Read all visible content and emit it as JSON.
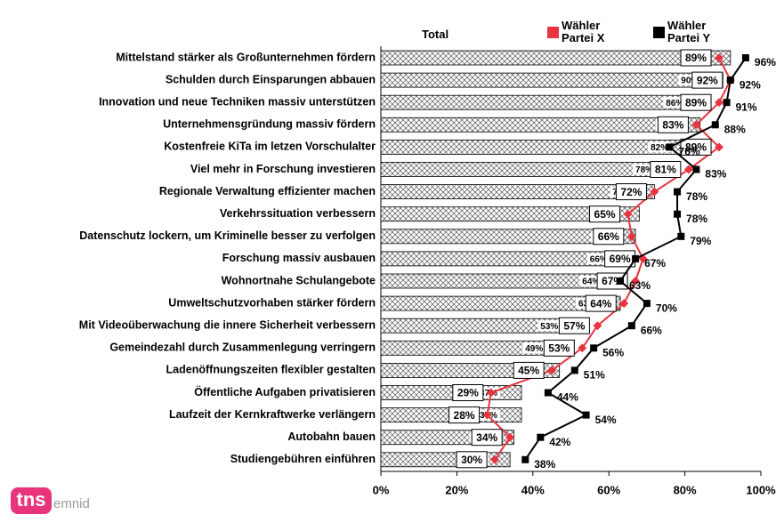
{
  "chart_data": {
    "type": "bar",
    "orientation": "horizontal",
    "categories": [
      "Mittelstand stärker als Großunternehmen fördern",
      "Schulden durch Einsparungen abbauen",
      "Innovation und neue Techniken massiv unterstützen",
      "Unternehmensgründung massiv fördern",
      "Kostenfreie KiTa im letzen Vorschulalter",
      "Viel mehr in Forschung investieren",
      "Regionale Verwaltung effizienter machen",
      "Verkehrssituation verbessern",
      "Datenschutz lockern, um Kriminelle besser zu verfolgen",
      "Forschung massiv ausbauen",
      "Wohnortnahe Schulangebote",
      "Umweltschutzvorhaben stärker fördern",
      "Mit Videoüberwachung die innere Sicherheit verbessern",
      "Gemeindezahl durch Zusammenlegung verringern",
      "Ladenöffnungszeiten flexibler gestalten",
      "Öffentliche Aufgaben privatisieren",
      "Laufzeit der Kernkraftwerke verlängern",
      "Autobahn bauen",
      "Studiengebühren einführen"
    ],
    "series": [
      {
        "name": "Total",
        "type": "bar",
        "color": "#000000",
        "values": [
          92,
          90,
          86,
          84,
          82,
          78,
          72,
          68,
          67,
          66,
          64,
          63,
          53,
          49,
          47,
          37,
          37,
          35,
          34
        ],
        "value_labels": [
          "92%",
          "90%",
          "86%",
          "84%",
          "82%",
          "78%",
          "72%",
          "68%",
          "67%",
          "66%",
          "64%",
          "63%",
          "53%",
          "49%",
          "47%",
          "37%",
          "37%",
          "35%",
          "34%"
        ]
      },
      {
        "name": "Wähler Partei X",
        "type": "line",
        "color": "#e8343f",
        "values": [
          89,
          92,
          89,
          83,
          89,
          81,
          72,
          65,
          66,
          69,
          67,
          64,
          57,
          53,
          45,
          29,
          28,
          34,
          30
        ],
        "value_labels": [
          "89%",
          "92%",
          "89%",
          "83%",
          "89%",
          "81%",
          "72%",
          "65%",
          "66%",
          "69%",
          "67%",
          "64%",
          "57%",
          "53%",
          "45%",
          "29%",
          "28%",
          "34%",
          "30%"
        ]
      },
      {
        "name": "Wähler Partei Y",
        "type": "line",
        "color": "#000000",
        "values": [
          96,
          92,
          91,
          88,
          76,
          83,
          78,
          78,
          79,
          67,
          63,
          70,
          66,
          56,
          51,
          44,
          54,
          42,
          38
        ],
        "value_labels": [
          "96%",
          "92%",
          "91%",
          "88%",
          "76%",
          "83%",
          "78%",
          "78%",
          "79%",
          "67%",
          "63%",
          "70%",
          "66%",
          "56%",
          "51%",
          "44%",
          "54%",
          "42%",
          "38%"
        ]
      }
    ],
    "xlim": [
      0,
      100
    ],
    "xticks": [
      {
        "value": 0,
        "label": "0%"
      },
      {
        "value": 20,
        "label": "20%"
      },
      {
        "value": 40,
        "label": "40%"
      },
      {
        "value": 60,
        "label": "60%"
      },
      {
        "value": 80,
        "label": "80%"
      },
      {
        "value": 100,
        "label": "100%"
      }
    ]
  },
  "logo": {
    "brand": "tns",
    "sub": "emnid"
  }
}
